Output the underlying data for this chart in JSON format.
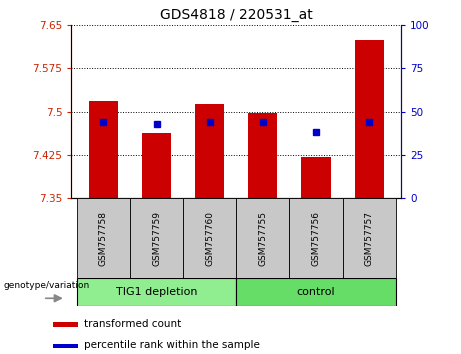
{
  "title": "GDS4818 / 220531_at",
  "categories": [
    "GSM757758",
    "GSM757759",
    "GSM757760",
    "GSM757755",
    "GSM757756",
    "GSM757757"
  ],
  "red_values": [
    7.518,
    7.462,
    7.513,
    7.497,
    7.422,
    7.624
  ],
  "blue_values": [
    44,
    43,
    44,
    44,
    38,
    44
  ],
  "ylim_left": [
    7.35,
    7.65
  ],
  "ylim_right": [
    0,
    100
  ],
  "yticks_left": [
    7.35,
    7.425,
    7.5,
    7.575,
    7.65
  ],
  "yticks_right": [
    0,
    25,
    50,
    75,
    100
  ],
  "group1_label": "TIG1 depletion",
  "group2_label": "control",
  "group1_indices": [
    0,
    1,
    2
  ],
  "group2_indices": [
    3,
    4,
    5
  ],
  "group1_color": "#90ee90",
  "group2_color": "#66dd66",
  "bar_color": "#cc0000",
  "dot_color": "#0000cc",
  "genotype_label": "genotype/variation",
  "legend_red": "transformed count",
  "legend_blue": "percentile rank within the sample",
  "bar_width": 0.55,
  "left_tick_color": "#cc2200",
  "right_tick_color": "#0000cc",
  "tick_bg_color": "#c8c8c8"
}
